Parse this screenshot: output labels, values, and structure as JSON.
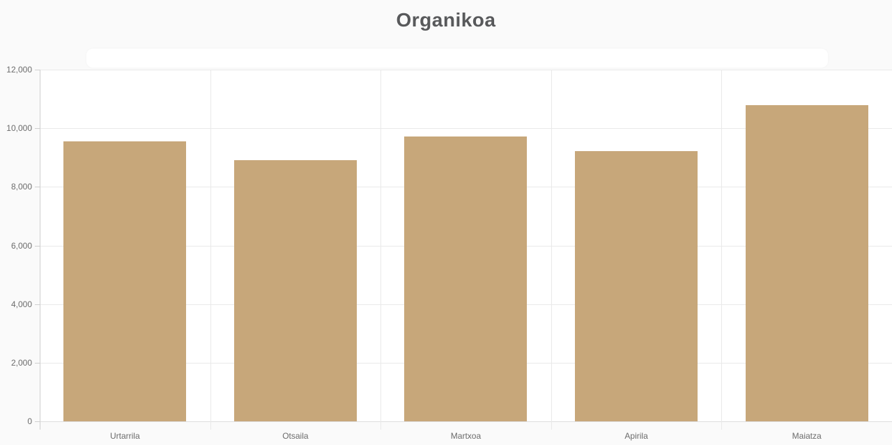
{
  "page": {
    "background_color": "#fafafa",
    "plot_background_color": "#ffffff"
  },
  "chart_data": {
    "type": "bar",
    "title": "Organikoa",
    "categories": [
      "Urtarrila",
      "Otsaila",
      "Martxoa",
      "Apirila",
      "Maiatza"
    ],
    "series": [
      {
        "name": "Organikoa",
        "values": [
          9550,
          8910,
          9720,
          9220,
          10780
        ]
      }
    ],
    "xlabel": "",
    "ylabel": "",
    "ylim": [
      0,
      12000
    ],
    "ytick_step": 2000,
    "ytick_labels": [
      "0",
      "2,000",
      "4,000",
      "6,000",
      "8,000",
      "10,000",
      "12,000"
    ],
    "grid": true,
    "legend_position": "none",
    "bar_color": "#c7a77a",
    "title_color": "#58595b",
    "axis_label_color": "#6b6b6b",
    "gridline_color": "#e9e9e9",
    "axis_line_color": "#cfcfcf"
  }
}
